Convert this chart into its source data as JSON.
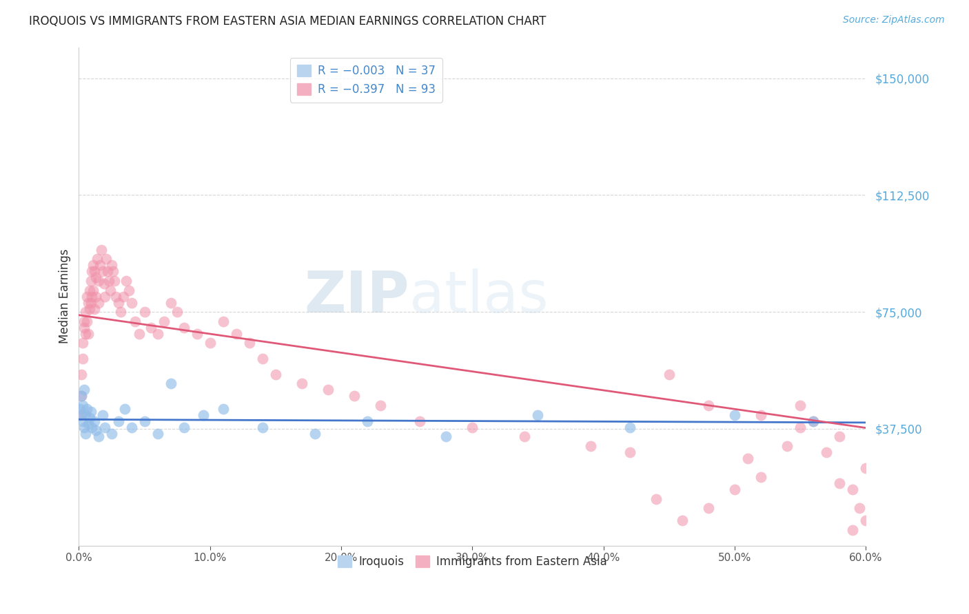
{
  "title": "IROQUOIS VS IMMIGRANTS FROM EASTERN ASIA MEDIAN EARNINGS CORRELATION CHART",
  "source": "Source: ZipAtlas.com",
  "ylabel": "Median Earnings",
  "yticks": [
    0,
    37500,
    75000,
    112500,
    150000
  ],
  "ytick_labels": [
    "",
    "$37,500",
    "$75,000",
    "$112,500",
    "$150,000"
  ],
  "xlim": [
    0.0,
    0.6
  ],
  "ylim": [
    0,
    160000
  ],
  "series1_color": "#90bce8",
  "series2_color": "#f090a8",
  "line1_color": "#4477cc",
  "line2_color": "#e05878",
  "watermark": "ZIPatlas",
  "iroquois_x": [
    0.001,
    0.002,
    0.002,
    0.003,
    0.003,
    0.004,
    0.004,
    0.005,
    0.005,
    0.006,
    0.007,
    0.008,
    0.009,
    0.01,
    0.012,
    0.013,
    0.015,
    0.018,
    0.02,
    0.025,
    0.03,
    0.035,
    0.04,
    0.05,
    0.06,
    0.07,
    0.08,
    0.095,
    0.11,
    0.14,
    0.18,
    0.22,
    0.28,
    0.35,
    0.42,
    0.5,
    0.56
  ],
  "iroquois_y": [
    44000,
    48000,
    42000,
    40000,
    45000,
    38000,
    50000,
    42000,
    36000,
    44000,
    39000,
    41000,
    43000,
    38000,
    40000,
    37000,
    35000,
    42000,
    38000,
    36000,
    40000,
    44000,
    38000,
    40000,
    36000,
    52000,
    38000,
    42000,
    44000,
    38000,
    36000,
    40000,
    35000,
    42000,
    38000,
    42000,
    40000
  ],
  "eastern_asia_x": [
    0.001,
    0.002,
    0.002,
    0.003,
    0.003,
    0.004,
    0.004,
    0.005,
    0.005,
    0.006,
    0.006,
    0.007,
    0.007,
    0.008,
    0.008,
    0.009,
    0.009,
    0.01,
    0.01,
    0.011,
    0.011,
    0.012,
    0.012,
    0.013,
    0.013,
    0.014,
    0.015,
    0.015,
    0.016,
    0.017,
    0.018,
    0.019,
    0.02,
    0.021,
    0.022,
    0.023,
    0.024,
    0.025,
    0.026,
    0.027,
    0.028,
    0.03,
    0.032,
    0.034,
    0.036,
    0.038,
    0.04,
    0.043,
    0.046,
    0.05,
    0.055,
    0.06,
    0.065,
    0.07,
    0.075,
    0.08,
    0.09,
    0.1,
    0.11,
    0.12,
    0.13,
    0.14,
    0.15,
    0.17,
    0.19,
    0.21,
    0.23,
    0.26,
    0.3,
    0.34,
    0.39,
    0.42,
    0.45,
    0.48,
    0.52,
    0.55,
    0.58,
    0.59,
    0.6,
    0.6,
    0.595,
    0.59,
    0.58,
    0.57,
    0.56,
    0.55,
    0.54,
    0.52,
    0.51,
    0.5,
    0.48,
    0.46,
    0.44
  ],
  "eastern_asia_y": [
    42000,
    48000,
    55000,
    60000,
    65000,
    70000,
    72000,
    68000,
    75000,
    80000,
    72000,
    78000,
    68000,
    82000,
    76000,
    85000,
    78000,
    88000,
    80000,
    90000,
    82000,
    88000,
    76000,
    86000,
    80000,
    92000,
    85000,
    78000,
    90000,
    95000,
    88000,
    84000,
    80000,
    92000,
    88000,
    85000,
    82000,
    90000,
    88000,
    85000,
    80000,
    78000,
    75000,
    80000,
    85000,
    82000,
    78000,
    72000,
    68000,
    75000,
    70000,
    68000,
    72000,
    78000,
    75000,
    70000,
    68000,
    65000,
    72000,
    68000,
    65000,
    60000,
    55000,
    52000,
    50000,
    48000,
    45000,
    40000,
    38000,
    35000,
    32000,
    30000,
    55000,
    45000,
    42000,
    38000,
    35000,
    18000,
    25000,
    8000,
    12000,
    5000,
    20000,
    30000,
    40000,
    45000,
    32000,
    22000,
    28000,
    18000,
    12000,
    8000,
    15000
  ]
}
